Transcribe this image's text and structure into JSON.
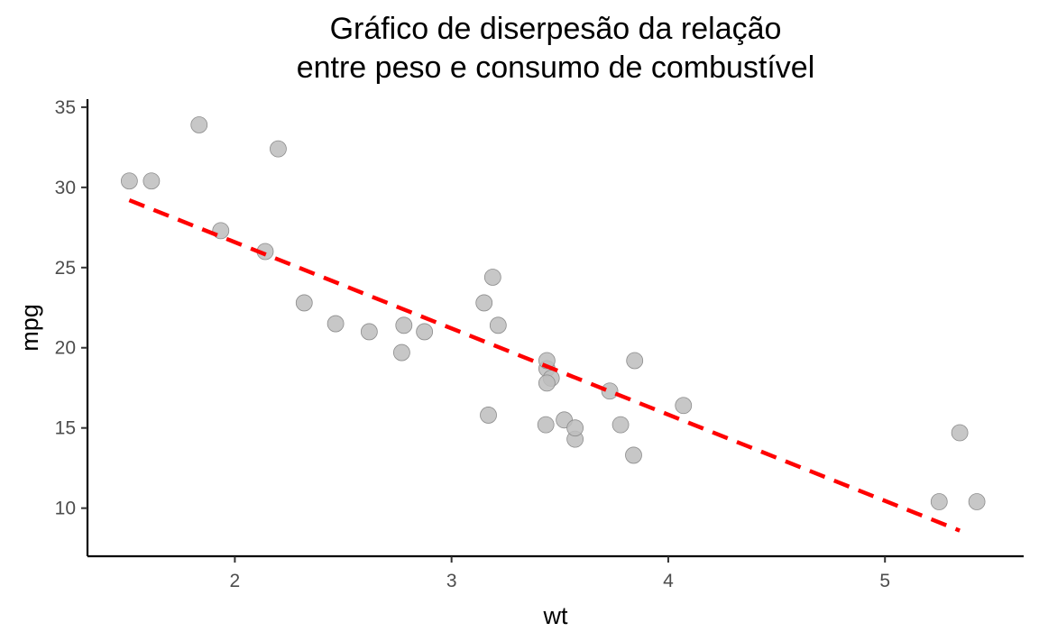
{
  "chart_data": {
    "type": "scatter",
    "title": "Gráfico de diserpesão da relação\nentre peso e consumo de combustível",
    "xlabel": "wt",
    "ylabel": "mpg",
    "xlim": [
      1.32,
      5.64
    ],
    "ylim": [
      7.0,
      35.5
    ],
    "xticks": [
      2,
      3,
      4,
      5
    ],
    "yticks": [
      10,
      15,
      20,
      25,
      30,
      35
    ],
    "grid": false,
    "legend": "none",
    "point_color": "#bdbdbd",
    "trend_color": "#ff0000",
    "points": [
      {
        "x": 2.62,
        "y": 21.0
      },
      {
        "x": 2.875,
        "y": 21.0
      },
      {
        "x": 2.32,
        "y": 22.8
      },
      {
        "x": 3.215,
        "y": 21.4
      },
      {
        "x": 3.44,
        "y": 18.7
      },
      {
        "x": 3.46,
        "y": 18.1
      },
      {
        "x": 3.57,
        "y": 14.3
      },
      {
        "x": 3.19,
        "y": 24.4
      },
      {
        "x": 3.15,
        "y": 22.8
      },
      {
        "x": 3.44,
        "y": 19.2
      },
      {
        "x": 3.44,
        "y": 17.8
      },
      {
        "x": 4.07,
        "y": 16.4
      },
      {
        "x": 3.73,
        "y": 17.3
      },
      {
        "x": 3.78,
        "y": 15.2
      },
      {
        "x": 5.25,
        "y": 10.4
      },
      {
        "x": 5.424,
        "y": 10.4
      },
      {
        "x": 5.345,
        "y": 14.7
      },
      {
        "x": 2.2,
        "y": 32.4
      },
      {
        "x": 1.615,
        "y": 30.4
      },
      {
        "x": 1.835,
        "y": 33.9
      },
      {
        "x": 2.465,
        "y": 21.5
      },
      {
        "x": 3.52,
        "y": 15.5
      },
      {
        "x": 3.435,
        "y": 15.2
      },
      {
        "x": 3.84,
        "y": 13.3
      },
      {
        "x": 3.845,
        "y": 19.2
      },
      {
        "x": 1.935,
        "y": 27.3
      },
      {
        "x": 2.14,
        "y": 26.0
      },
      {
        "x": 1.513,
        "y": 30.4
      },
      {
        "x": 3.17,
        "y": 15.8
      },
      {
        "x": 2.77,
        "y": 19.7
      },
      {
        "x": 3.57,
        "y": 15.0
      },
      {
        "x": 2.78,
        "y": 21.4
      }
    ],
    "trend_line": {
      "style": "dashed",
      "x": [
        1.513,
        5.345
      ],
      "y": [
        29.2,
        8.6
      ]
    }
  }
}
